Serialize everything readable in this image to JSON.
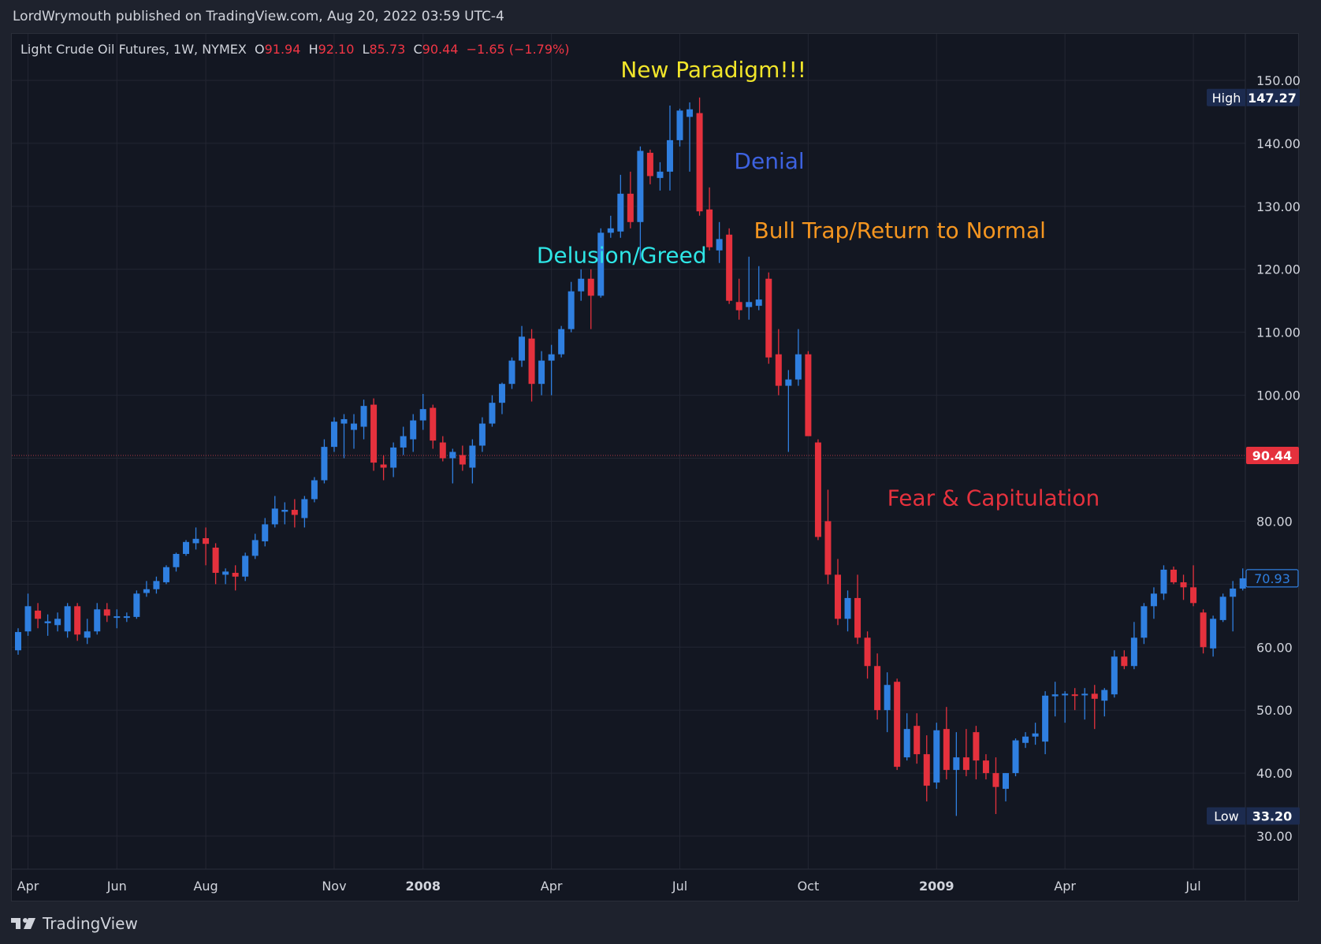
{
  "header": {
    "published_by": "LordWrymouth published on TradingView.com, Aug 20, 2022 03:59 UTC-4"
  },
  "legend": {
    "symbol": "Light Crude Oil Futures, 1W, NYMEX",
    "open_label": "O",
    "open": "91.94",
    "high_label": "H",
    "high": "92.10",
    "low_label": "L",
    "low": "85.73",
    "close_label": "C",
    "close": "90.44",
    "change": "−1.65 (−1.79%)"
  },
  "footer": {
    "logo_text": "TradingView"
  },
  "colors": {
    "up": "#2f7fe0",
    "down": "#e5313d",
    "background": "#131722",
    "grid": "#232632",
    "axis_text": "#d1d4dc"
  },
  "chart_data": {
    "type": "candlestick",
    "y_axis": {
      "min": 26,
      "max": 154,
      "ticks": [
        150,
        140,
        130,
        120,
        110,
        100,
        80,
        60,
        50,
        40,
        30
      ],
      "tick_labels": [
        "150.00",
        "140.00",
        "130.00",
        "120.00",
        "110.00",
        "100.00",
        "80.00",
        "60.00",
        "50.00",
        "40.00",
        "30.00"
      ]
    },
    "x_axis": {
      "labels": [
        {
          "text": "Apr",
          "week": 1
        },
        {
          "text": "Jun",
          "week": 10
        },
        {
          "text": "Aug",
          "week": 19
        },
        {
          "text": "Nov",
          "week": 32
        },
        {
          "text": "2008",
          "week": 41,
          "bold": true
        },
        {
          "text": "Apr",
          "week": 54
        },
        {
          "text": "Jul",
          "week": 67
        },
        {
          "text": "Oct",
          "week": 80
        },
        {
          "text": "2009",
          "week": 93,
          "bold": true
        },
        {
          "text": "Apr",
          "week": 106
        },
        {
          "text": "Jul",
          "week": 119
        }
      ]
    },
    "grid": true,
    "price_badges": [
      {
        "label": "High",
        "value": "147.27",
        "price": 147.27,
        "style": "navy"
      },
      {
        "label": "",
        "value": "90.44",
        "price": 90.44,
        "style": "red"
      },
      {
        "label": "",
        "value": "70.93",
        "price": 70.93,
        "style": "outline"
      },
      {
        "label": "Low",
        "value": "33.20",
        "price": 33.2,
        "style": "navy"
      }
    ],
    "current_price_line": 90.44,
    "annotations": [
      {
        "text": "New Paradigm!!!",
        "week": 61,
        "price": 150.5,
        "color": "#f1e52a"
      },
      {
        "text": "Denial",
        "week": 72.5,
        "price": 136,
        "color": "#3d62e0"
      },
      {
        "text": "Delusion/Greed",
        "week": 52.5,
        "price": 121,
        "color": "#2ee6e6"
      },
      {
        "text": "Bull Trap/Return to Normal",
        "week": 74.5,
        "price": 125,
        "color": "#f59620"
      },
      {
        "text": "Fear & Capitulation",
        "week": 88,
        "price": 82.5,
        "color": "#e5313d"
      }
    ],
    "candles": [
      {
        "o": 59.5,
        "h": 63.0,
        "l": 58.8,
        "c": 62.4
      },
      {
        "o": 62.5,
        "h": 68.5,
        "l": 61.8,
        "c": 66.5
      },
      {
        "o": 65.8,
        "h": 67.0,
        "l": 63.0,
        "c": 64.5
      },
      {
        "o": 63.8,
        "h": 65.2,
        "l": 61.8,
        "c": 64.1
      },
      {
        "o": 63.5,
        "h": 65.5,
        "l": 62.5,
        "c": 64.5
      },
      {
        "o": 62.5,
        "h": 67.0,
        "l": 61.5,
        "c": 66.5
      },
      {
        "o": 66.5,
        "h": 67.0,
        "l": 61.0,
        "c": 62.0
      },
      {
        "o": 61.5,
        "h": 64.5,
        "l": 60.5,
        "c": 62.5
      },
      {
        "o": 62.5,
        "h": 67.0,
        "l": 62.0,
        "c": 66.0
      },
      {
        "o": 66.0,
        "h": 67.0,
        "l": 64.0,
        "c": 65.0
      },
      {
        "o": 64.8,
        "h": 66.0,
        "l": 63.0,
        "c": 64.9
      },
      {
        "o": 64.8,
        "h": 65.5,
        "l": 64.0,
        "c": 64.9
      },
      {
        "o": 64.8,
        "h": 69.0,
        "l": 64.5,
        "c": 68.5
      },
      {
        "o": 68.6,
        "h": 70.5,
        "l": 68.0,
        "c": 69.2
      },
      {
        "o": 69.2,
        "h": 71.2,
        "l": 68.5,
        "c": 70.5
      },
      {
        "o": 70.3,
        "h": 73.0,
        "l": 70.0,
        "c": 72.7
      },
      {
        "o": 72.7,
        "h": 75.0,
        "l": 72.0,
        "c": 74.8
      },
      {
        "o": 74.8,
        "h": 77.0,
        "l": 74.5,
        "c": 76.7
      },
      {
        "o": 76.5,
        "h": 79.0,
        "l": 75.5,
        "c": 77.2
      },
      {
        "o": 77.3,
        "h": 79.0,
        "l": 73.0,
        "c": 76.4
      },
      {
        "o": 75.8,
        "h": 76.5,
        "l": 70.0,
        "c": 71.8
      },
      {
        "o": 71.5,
        "h": 72.5,
        "l": 70.0,
        "c": 72.0
      },
      {
        "o": 71.8,
        "h": 73.0,
        "l": 69.0,
        "c": 71.2
      },
      {
        "o": 71.2,
        "h": 75.0,
        "l": 70.5,
        "c": 74.5
      },
      {
        "o": 74.5,
        "h": 78.0,
        "l": 74.0,
        "c": 77.0
      },
      {
        "o": 76.8,
        "h": 80.5,
        "l": 76.0,
        "c": 79.5
      },
      {
        "o": 79.5,
        "h": 84.0,
        "l": 79.0,
        "c": 82.0
      },
      {
        "o": 81.5,
        "h": 83.0,
        "l": 79.5,
        "c": 81.8
      },
      {
        "o": 81.8,
        "h": 83.5,
        "l": 79.0,
        "c": 81.0
      },
      {
        "o": 80.5,
        "h": 84.0,
        "l": 79.0,
        "c": 83.5
      },
      {
        "o": 83.5,
        "h": 87.0,
        "l": 83.0,
        "c": 86.5
      },
      {
        "o": 86.5,
        "h": 93.0,
        "l": 86.0,
        "c": 91.8
      },
      {
        "o": 91.8,
        "h": 96.5,
        "l": 91.0,
        "c": 95.8
      },
      {
        "o": 95.5,
        "h": 97.0,
        "l": 90.0,
        "c": 96.2
      },
      {
        "o": 94.5,
        "h": 97.0,
        "l": 91.5,
        "c": 95.5
      },
      {
        "o": 95.0,
        "h": 99.3,
        "l": 93.0,
        "c": 98.3
      },
      {
        "o": 98.5,
        "h": 99.5,
        "l": 88.0,
        "c": 89.3
      },
      {
        "o": 89.0,
        "h": 90.5,
        "l": 86.5,
        "c": 88.5
      },
      {
        "o": 88.5,
        "h": 92.5,
        "l": 87.0,
        "c": 91.7
      },
      {
        "o": 91.7,
        "h": 95.0,
        "l": 90.5,
        "c": 93.5
      },
      {
        "o": 93.0,
        "h": 97.0,
        "l": 91.0,
        "c": 96.0
      },
      {
        "o": 96.0,
        "h": 100.2,
        "l": 94.5,
        "c": 97.8
      },
      {
        "o": 98.0,
        "h": 98.5,
        "l": 91.5,
        "c": 92.8
      },
      {
        "o": 92.5,
        "h": 93.5,
        "l": 89.5,
        "c": 90.0
      },
      {
        "o": 90.0,
        "h": 91.5,
        "l": 86.0,
        "c": 91.0
      },
      {
        "o": 90.5,
        "h": 92.0,
        "l": 88.0,
        "c": 89.0
      },
      {
        "o": 88.5,
        "h": 93.0,
        "l": 86.0,
        "c": 92.0
      },
      {
        "o": 92.0,
        "h": 96.5,
        "l": 91.0,
        "c": 95.5
      },
      {
        "o": 95.5,
        "h": 100.0,
        "l": 95.0,
        "c": 98.8
      },
      {
        "o": 98.8,
        "h": 102.0,
        "l": 97.0,
        "c": 101.8
      },
      {
        "o": 101.8,
        "h": 106.0,
        "l": 101.0,
        "c": 105.5
      },
      {
        "o": 105.5,
        "h": 111.0,
        "l": 104.5,
        "c": 109.3
      },
      {
        "o": 109.0,
        "h": 110.5,
        "l": 99.0,
        "c": 101.8
      },
      {
        "o": 101.8,
        "h": 107.0,
        "l": 100.0,
        "c": 105.5
      },
      {
        "o": 105.5,
        "h": 108.0,
        "l": 100.0,
        "c": 106.5
      },
      {
        "o": 106.5,
        "h": 111.0,
        "l": 106.0,
        "c": 110.5
      },
      {
        "o": 110.5,
        "h": 118.0,
        "l": 110.0,
        "c": 116.5
      },
      {
        "o": 116.5,
        "h": 120.0,
        "l": 115.0,
        "c": 118.5
      },
      {
        "o": 118.5,
        "h": 120.0,
        "l": 110.5,
        "c": 115.8
      },
      {
        "o": 115.8,
        "h": 126.5,
        "l": 115.5,
        "c": 125.8
      },
      {
        "o": 125.8,
        "h": 128.5,
        "l": 125.0,
        "c": 126.5
      },
      {
        "o": 126.0,
        "h": 135.0,
        "l": 125.0,
        "c": 132.0
      },
      {
        "o": 132.0,
        "h": 135.5,
        "l": 126.5,
        "c": 127.5
      },
      {
        "o": 127.5,
        "h": 139.5,
        "l": 121.5,
        "c": 138.8
      },
      {
        "o": 138.5,
        "h": 139.0,
        "l": 133.5,
        "c": 134.8
      },
      {
        "o": 134.5,
        "h": 137.0,
        "l": 132.5,
        "c": 135.5
      },
      {
        "o": 135.5,
        "h": 146.0,
        "l": 132.5,
        "c": 140.5
      },
      {
        "o": 140.5,
        "h": 145.5,
        "l": 139.5,
        "c": 145.2
      },
      {
        "o": 144.2,
        "h": 146.5,
        "l": 135.5,
        "c": 145.4
      },
      {
        "o": 144.8,
        "h": 147.27,
        "l": 128.5,
        "c": 129.2
      },
      {
        "o": 129.5,
        "h": 133.0,
        "l": 123.0,
        "c": 123.5
      },
      {
        "o": 123.0,
        "h": 127.5,
        "l": 121.0,
        "c": 124.8
      },
      {
        "o": 125.5,
        "h": 126.5,
        "l": 114.5,
        "c": 115.0
      },
      {
        "o": 114.8,
        "h": 118.5,
        "l": 112.0,
        "c": 113.5
      },
      {
        "o": 114.0,
        "h": 122.0,
        "l": 112.0,
        "c": 114.8
      },
      {
        "o": 114.2,
        "h": 120.5,
        "l": 113.5,
        "c": 115.2
      },
      {
        "o": 118.5,
        "h": 119.5,
        "l": 105.0,
        "c": 106.0
      },
      {
        "o": 106.5,
        "h": 110.5,
        "l": 100.0,
        "c": 101.5
      },
      {
        "o": 101.5,
        "h": 104.0,
        "l": 91.0,
        "c": 102.5
      },
      {
        "o": 102.5,
        "h": 110.5,
        "l": 101.5,
        "c": 106.5
      },
      {
        "o": 106.5,
        "h": 107.0,
        "l": 94.0,
        "c": 93.5
      },
      {
        "o": 92.5,
        "h": 93.0,
        "l": 77.0,
        "c": 77.5
      },
      {
        "o": 80.0,
        "h": 85.0,
        "l": 70.0,
        "c": 71.5
      },
      {
        "o": 71.5,
        "h": 74.0,
        "l": 63.5,
        "c": 64.5
      },
      {
        "o": 64.5,
        "h": 69.0,
        "l": 62.5,
        "c": 67.8
      },
      {
        "o": 67.8,
        "h": 71.5,
        "l": 60.5,
        "c": 61.5
      },
      {
        "o": 61.5,
        "h": 62.5,
        "l": 55.0,
        "c": 57.0
      },
      {
        "o": 57.0,
        "h": 59.0,
        "l": 48.5,
        "c": 50.0
      },
      {
        "o": 50.0,
        "h": 56.0,
        "l": 46.5,
        "c": 54.0
      },
      {
        "o": 54.5,
        "h": 55.0,
        "l": 40.5,
        "c": 41.0
      },
      {
        "o": 42.5,
        "h": 49.5,
        "l": 42.0,
        "c": 47.0
      },
      {
        "o": 47.5,
        "h": 49.5,
        "l": 41.5,
        "c": 43.0
      },
      {
        "o": 43.0,
        "h": 46.0,
        "l": 35.5,
        "c": 38.0
      },
      {
        "o": 38.5,
        "h": 48.0,
        "l": 37.5,
        "c": 46.8
      },
      {
        "o": 47.0,
        "h": 50.5,
        "l": 39.0,
        "c": 40.5
      },
      {
        "o": 40.5,
        "h": 46.5,
        "l": 33.2,
        "c": 42.5
      },
      {
        "o": 42.5,
        "h": 47.0,
        "l": 39.5,
        "c": 40.5
      },
      {
        "o": 46.5,
        "h": 47.5,
        "l": 39.0,
        "c": 42.0
      },
      {
        "o": 42.0,
        "h": 43.0,
        "l": 39.0,
        "c": 40.0
      },
      {
        "o": 40.0,
        "h": 42.5,
        "l": 33.5,
        "c": 37.8
      },
      {
        "o": 37.5,
        "h": 40.0,
        "l": 35.5,
        "c": 40.0
      },
      {
        "o": 40.0,
        "h": 45.5,
        "l": 39.5,
        "c": 45.2
      },
      {
        "o": 44.8,
        "h": 46.5,
        "l": 44.0,
        "c": 45.8
      },
      {
        "o": 45.8,
        "h": 48.0,
        "l": 44.5,
        "c": 46.3
      },
      {
        "o": 45.0,
        "h": 53.0,
        "l": 43.0,
        "c": 52.3
      },
      {
        "o": 52.2,
        "h": 54.5,
        "l": 49.0,
        "c": 52.5
      },
      {
        "o": 52.5,
        "h": 53.0,
        "l": 48.0,
        "c": 52.6
      },
      {
        "o": 52.5,
        "h": 53.5,
        "l": 50.0,
        "c": 52.4
      },
      {
        "o": 52.4,
        "h": 53.5,
        "l": 48.5,
        "c": 52.6
      },
      {
        "o": 52.6,
        "h": 54.0,
        "l": 47.0,
        "c": 51.8
      },
      {
        "o": 51.5,
        "h": 53.5,
        "l": 49.0,
        "c": 53.2
      },
      {
        "o": 52.5,
        "h": 59.5,
        "l": 52.0,
        "c": 58.5
      },
      {
        "o": 58.5,
        "h": 59.5,
        "l": 56.5,
        "c": 57.0
      },
      {
        "o": 57.0,
        "h": 64.0,
        "l": 56.5,
        "c": 61.5
      },
      {
        "o": 61.5,
        "h": 67.0,
        "l": 60.5,
        "c": 66.5
      },
      {
        "o": 66.5,
        "h": 69.5,
        "l": 64.5,
        "c": 68.5
      },
      {
        "o": 68.5,
        "h": 73.0,
        "l": 67.5,
        "c": 72.3
      },
      {
        "o": 72.3,
        "h": 72.8,
        "l": 70.0,
        "c": 70.3
      },
      {
        "o": 70.3,
        "h": 71.5,
        "l": 67.5,
        "c": 69.5
      },
      {
        "o": 69.5,
        "h": 73.0,
        "l": 66.5,
        "c": 67.0
      },
      {
        "o": 65.5,
        "h": 66.0,
        "l": 59.0,
        "c": 60.0
      },
      {
        "o": 59.8,
        "h": 65.0,
        "l": 58.5,
        "c": 64.5
      },
      {
        "o": 64.3,
        "h": 68.5,
        "l": 64.0,
        "c": 68.0
      },
      {
        "o": 68.0,
        "h": 70.5,
        "l": 62.5,
        "c": 69.3
      },
      {
        "o": 69.3,
        "h": 72.5,
        "l": 69.0,
        "c": 70.93
      }
    ]
  }
}
